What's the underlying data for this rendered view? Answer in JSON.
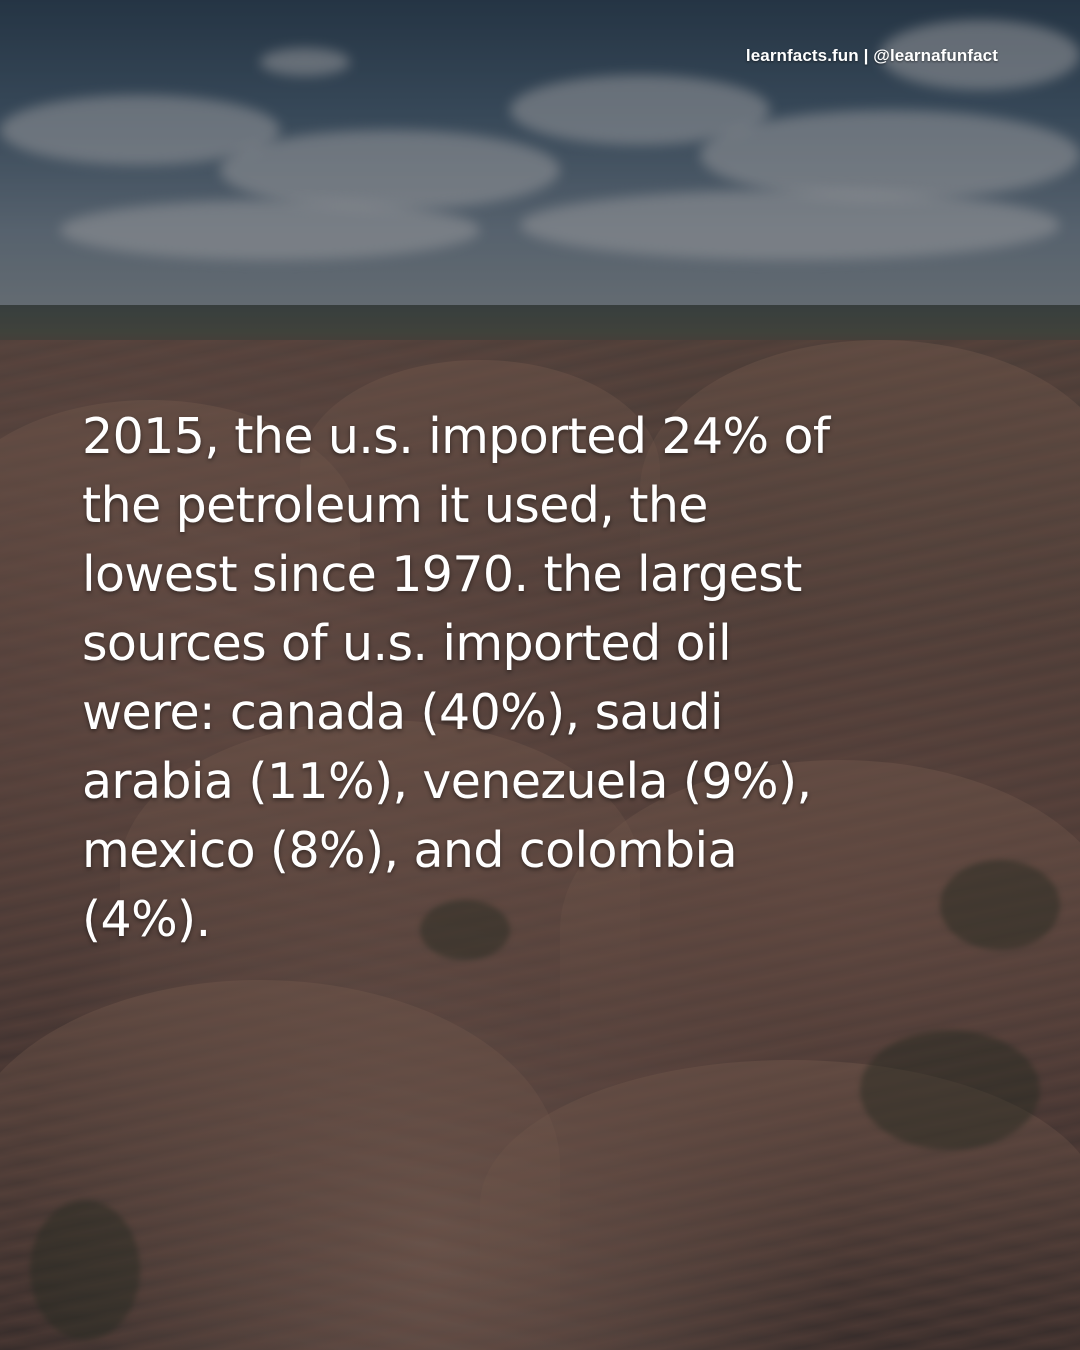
{
  "credit": {
    "text": "learnfacts.fun | @learnafunfact"
  },
  "fact": {
    "text": "2015, the u.s. imported 24% of the petroleum it used, the lowest since 1970. the largest sources of u.s. imported oil were: canada (40%), saudi arabia (11%), venezuela (9%), mexico (8%), and colombia (4%)."
  },
  "background": {
    "description_colors": {
      "sky": "#4d6a84",
      "land": "#6a514a",
      "overlay": "#141212"
    }
  }
}
